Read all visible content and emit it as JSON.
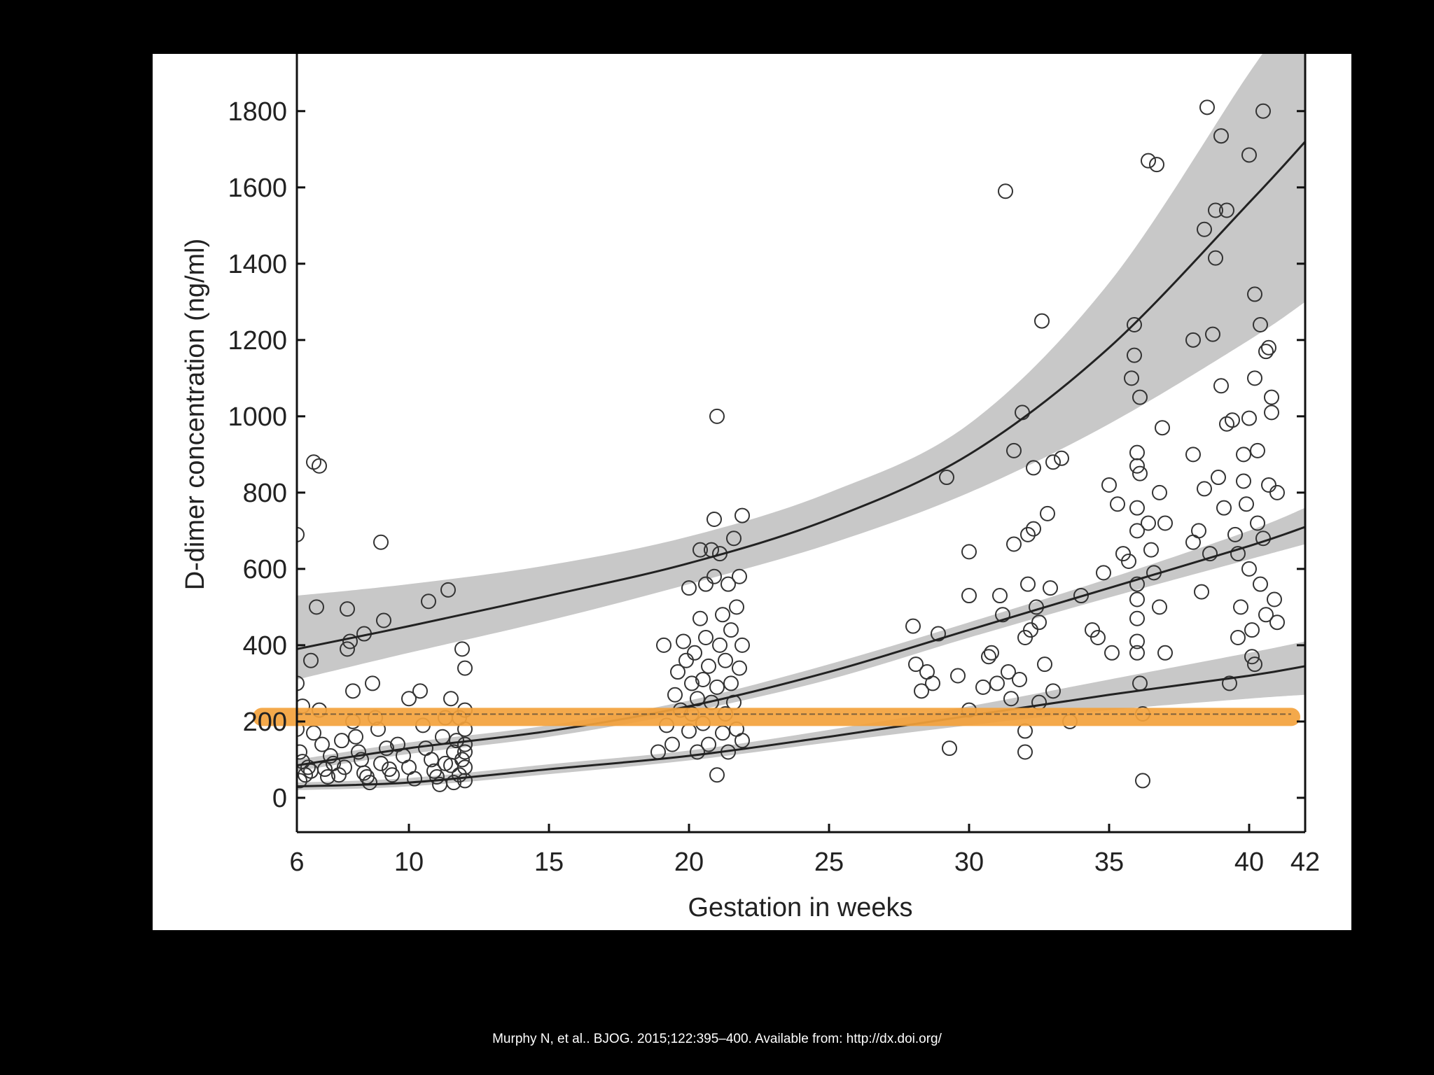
{
  "citation": "Murphy N,  et al.. BJOG. 2015;122:395–400. Available from: http://dx.doi.org/",
  "colors": {
    "slide_background": "#000000",
    "panel_background": "#ffffff",
    "band_fill": "#c8c8c8",
    "curve": "#222222",
    "marker_stroke": "#333333",
    "highlight": "#f4a23c"
  },
  "chart_data": {
    "type": "scatter",
    "title": "",
    "xlabel": "Gestation in weeks",
    "ylabel": "D-dimer concentration (ng/ml)",
    "xlim": [
      6,
      42
    ],
    "ylim": [
      -90,
      1950
    ],
    "xticks": [
      6,
      10,
      15,
      20,
      25,
      30,
      35,
      40,
      42
    ],
    "yticks": [
      0,
      200,
      400,
      600,
      800,
      1000,
      1200,
      1400,
      1600,
      1800
    ],
    "grid": false,
    "legend": "none",
    "curves": [
      {
        "role": "upper",
        "x": [
          6,
          10,
          15,
          20,
          25,
          30,
          35,
          40,
          42
        ],
        "y": [
          390,
          450,
          530,
          615,
          730,
          900,
          1180,
          1560,
          1720
        ],
        "band_low": [
          310,
          380,
          465,
          560,
          665,
          800,
          980,
          1200,
          1300
        ],
        "band_high": [
          530,
          560,
          610,
          685,
          800,
          980,
          1350,
          1900,
          2100
        ]
      },
      {
        "role": "median",
        "x": [
          6,
          10,
          15,
          20,
          25,
          30,
          35,
          40,
          42
        ],
        "y": [
          85,
          130,
          175,
          240,
          330,
          440,
          550,
          660,
          710
        ],
        "band_low": [
          70,
          115,
          160,
          225,
          310,
          420,
          525,
          625,
          665
        ],
        "band_high": [
          100,
          145,
          190,
          255,
          350,
          460,
          575,
          700,
          760
        ]
      },
      {
        "role": "lower",
        "x": [
          6,
          10,
          15,
          20,
          25,
          30,
          35,
          40,
          42
        ],
        "y": [
          30,
          40,
          75,
          110,
          160,
          215,
          270,
          320,
          345
        ],
        "band_low": [
          20,
          30,
          62,
          98,
          145,
          190,
          230,
          260,
          270
        ],
        "band_high": [
          40,
          52,
          88,
          124,
          178,
          240,
          310,
          380,
          410
        ]
      }
    ],
    "highlight_line": {
      "y": 212,
      "x_start": 6,
      "x_end": 41.5
    },
    "points": [
      [
        6.0,
        690
      ],
      [
        6.1,
        120
      ],
      [
        6.0,
        300
      ],
      [
        6.2,
        240
      ],
      [
        6.0,
        180
      ],
      [
        6.3,
        60
      ],
      [
        6.1,
        45
      ],
      [
        6.4,
        80
      ],
      [
        6.2,
        95
      ],
      [
        6.5,
        70
      ],
      [
        6.6,
        880
      ],
      [
        6.8,
        870
      ],
      [
        6.7,
        500
      ],
      [
        6.8,
        230
      ],
      [
        6.9,
        140
      ],
      [
        6.5,
        360
      ],
      [
        6.6,
        170
      ],
      [
        7.0,
        75
      ],
      [
        7.1,
        55
      ],
      [
        7.2,
        110
      ],
      [
        7.3,
        90
      ],
      [
        7.5,
        60
      ],
      [
        7.6,
        150
      ],
      [
        7.7,
        80
      ],
      [
        7.8,
        495
      ],
      [
        7.8,
        390
      ],
      [
        7.9,
        410
      ],
      [
        8.0,
        280
      ],
      [
        8.0,
        200
      ],
      [
        8.1,
        160
      ],
      [
        8.2,
        120
      ],
      [
        8.3,
        100
      ],
      [
        8.4,
        65
      ],
      [
        8.5,
        55
      ],
      [
        8.6,
        40
      ],
      [
        8.4,
        430
      ],
      [
        8.7,
        300
      ],
      [
        8.8,
        210
      ],
      [
        8.9,
        180
      ],
      [
        9.0,
        670
      ],
      [
        9.0,
        90
      ],
      [
        9.1,
        465
      ],
      [
        9.2,
        130
      ],
      [
        9.3,
        75
      ],
      [
        9.4,
        60
      ],
      [
        9.6,
        140
      ],
      [
        9.8,
        110
      ],
      [
        10.0,
        80
      ],
      [
        10.0,
        260
      ],
      [
        10.2,
        50
      ],
      [
        10.4,
        280
      ],
      [
        10.5,
        190
      ],
      [
        10.6,
        130
      ],
      [
        10.7,
        515
      ],
      [
        10.8,
        100
      ],
      [
        10.9,
        70
      ],
      [
        11.0,
        55
      ],
      [
        11.1,
        35
      ],
      [
        11.2,
        160
      ],
      [
        11.3,
        210
      ],
      [
        11.4,
        545
      ],
      [
        11.5,
        85
      ],
      [
        11.5,
        260
      ],
      [
        11.6,
        120
      ],
      [
        11.7,
        150
      ],
      [
        11.8,
        60
      ],
      [
        11.9,
        390
      ],
      [
        11.9,
        100
      ],
      [
        12.0,
        340
      ],
      [
        12.0,
        230
      ],
      [
        12.0,
        180
      ],
      [
        12.0,
        140
      ],
      [
        12.0,
        80
      ],
      [
        12.0,
        45
      ],
      [
        12.0,
        120
      ],
      [
        11.8,
        210
      ],
      [
        11.6,
        40
      ],
      [
        11.3,
        90
      ],
      [
        18.9,
        120
      ],
      [
        19.1,
        400
      ],
      [
        19.2,
        190
      ],
      [
        19.4,
        140
      ],
      [
        19.5,
        270
      ],
      [
        19.6,
        330
      ],
      [
        19.7,
        230
      ],
      [
        19.8,
        410
      ],
      [
        19.9,
        360
      ],
      [
        20.0,
        550
      ],
      [
        20.0,
        175
      ],
      [
        20.1,
        300
      ],
      [
        20.1,
        220
      ],
      [
        20.2,
        380
      ],
      [
        20.3,
        260
      ],
      [
        20.3,
        120
      ],
      [
        20.4,
        650
      ],
      [
        20.4,
        470
      ],
      [
        20.5,
        310
      ],
      [
        20.5,
        195
      ],
      [
        20.6,
        560
      ],
      [
        20.6,
        420
      ],
      [
        20.7,
        140
      ],
      [
        20.7,
        345
      ],
      [
        20.8,
        250
      ],
      [
        20.8,
        650
      ],
      [
        20.9,
        730
      ],
      [
        20.9,
        580
      ],
      [
        21.0,
        60
      ],
      [
        21.0,
        290
      ],
      [
        21.0,
        1000
      ],
      [
        21.1,
        400
      ],
      [
        21.1,
        640
      ],
      [
        21.2,
        480
      ],
      [
        21.2,
        170
      ],
      [
        21.3,
        360
      ],
      [
        21.3,
        220
      ],
      [
        21.4,
        560
      ],
      [
        21.4,
        120
      ],
      [
        21.5,
        440
      ],
      [
        21.5,
        300
      ],
      [
        21.6,
        680
      ],
      [
        21.6,
        250
      ],
      [
        21.7,
        500
      ],
      [
        21.7,
        180
      ],
      [
        21.8,
        340
      ],
      [
        21.8,
        580
      ],
      [
        21.9,
        740
      ],
      [
        21.9,
        150
      ],
      [
        21.9,
        400
      ],
      [
        28.0,
        450
      ],
      [
        28.1,
        350
      ],
      [
        28.3,
        280
      ],
      [
        28.5,
        330
      ],
      [
        28.7,
        300
      ],
      [
        28.9,
        430
      ],
      [
        29.2,
        840
      ],
      [
        29.3,
        130
      ],
      [
        29.6,
        320
      ],
      [
        30.0,
        645
      ],
      [
        30.0,
        530
      ],
      [
        30.0,
        230
      ],
      [
        30.5,
        290
      ],
      [
        30.7,
        370
      ],
      [
        30.8,
        380
      ],
      [
        31.0,
        300
      ],
      [
        31.1,
        530
      ],
      [
        31.2,
        480
      ],
      [
        31.3,
        1590
      ],
      [
        31.4,
        330
      ],
      [
        31.5,
        260
      ],
      [
        31.6,
        910
      ],
      [
        31.6,
        665
      ],
      [
        31.8,
        310
      ],
      [
        31.9,
        1010
      ],
      [
        32.0,
        120
      ],
      [
        32.0,
        175
      ],
      [
        32.0,
        420
      ],
      [
        32.1,
        560
      ],
      [
        32.1,
        690
      ],
      [
        32.2,
        440
      ],
      [
        32.3,
        865
      ],
      [
        32.3,
        705
      ],
      [
        32.4,
        500
      ],
      [
        32.5,
        250
      ],
      [
        32.5,
        460
      ],
      [
        32.6,
        1250
      ],
      [
        32.7,
        350
      ],
      [
        32.8,
        745
      ],
      [
        32.9,
        550
      ],
      [
        33.0,
        880
      ],
      [
        33.0,
        280
      ],
      [
        33.3,
        890
      ],
      [
        33.6,
        200
      ],
      [
        34.0,
        530
      ],
      [
        34.4,
        440
      ],
      [
        34.6,
        420
      ],
      [
        34.8,
        590
      ],
      [
        35.0,
        820
      ],
      [
        35.1,
        380
      ],
      [
        35.3,
        770
      ],
      [
        35.5,
        640
      ],
      [
        35.7,
        620
      ],
      [
        35.8,
        1100
      ],
      [
        35.9,
        1240
      ],
      [
        35.9,
        1160
      ],
      [
        36.0,
        905
      ],
      [
        36.0,
        870
      ],
      [
        36.0,
        760
      ],
      [
        36.0,
        700
      ],
      [
        36.0,
        560
      ],
      [
        36.0,
        520
      ],
      [
        36.0,
        470
      ],
      [
        36.0,
        410
      ],
      [
        36.0,
        380
      ],
      [
        36.1,
        1050
      ],
      [
        36.1,
        850
      ],
      [
        36.1,
        300
      ],
      [
        36.2,
        45
      ],
      [
        36.2,
        220
      ],
      [
        36.4,
        1670
      ],
      [
        36.4,
        720
      ],
      [
        36.5,
        650
      ],
      [
        36.6,
        590
      ],
      [
        36.7,
        1660
      ],
      [
        36.8,
        800
      ],
      [
        36.8,
        500
      ],
      [
        36.9,
        970
      ],
      [
        37.0,
        720
      ],
      [
        37.0,
        380
      ],
      [
        38.0,
        900
      ],
      [
        38.0,
        670
      ],
      [
        38.0,
        1200
      ],
      [
        38.2,
        700
      ],
      [
        38.3,
        540
      ],
      [
        38.4,
        1490
      ],
      [
        38.4,
        810
      ],
      [
        38.5,
        1810
      ],
      [
        38.6,
        640
      ],
      [
        38.7,
        1215
      ],
      [
        38.8,
        1540
      ],
      [
        38.8,
        1415
      ],
      [
        38.9,
        840
      ],
      [
        39.0,
        1735
      ],
      [
        39.0,
        1080
      ],
      [
        39.1,
        760
      ],
      [
        39.2,
        1540
      ],
      [
        39.2,
        980
      ],
      [
        39.3,
        300
      ],
      [
        39.4,
        990
      ],
      [
        39.5,
        690
      ],
      [
        39.6,
        640
      ],
      [
        39.7,
        500
      ],
      [
        39.8,
        900
      ],
      [
        39.8,
        830
      ],
      [
        39.9,
        770
      ],
      [
        40.0,
        1685
      ],
      [
        40.0,
        995
      ],
      [
        40.0,
        600
      ],
      [
        40.1,
        440
      ],
      [
        40.1,
        370
      ],
      [
        40.2,
        1320
      ],
      [
        40.2,
        1100
      ],
      [
        40.3,
        910
      ],
      [
        40.3,
        720
      ],
      [
        40.4,
        1240
      ],
      [
        40.4,
        560
      ],
      [
        40.5,
        1800
      ],
      [
        40.5,
        680
      ],
      [
        40.6,
        1170
      ],
      [
        40.6,
        480
      ],
      [
        40.7,
        1180
      ],
      [
        40.7,
        820
      ],
      [
        40.8,
        1050
      ],
      [
        40.8,
        1010
      ],
      [
        40.9,
        520
      ],
      [
        41.0,
        800
      ],
      [
        41.0,
        460
      ],
      [
        40.2,
        350
      ],
      [
        39.6,
        420
      ]
    ]
  }
}
